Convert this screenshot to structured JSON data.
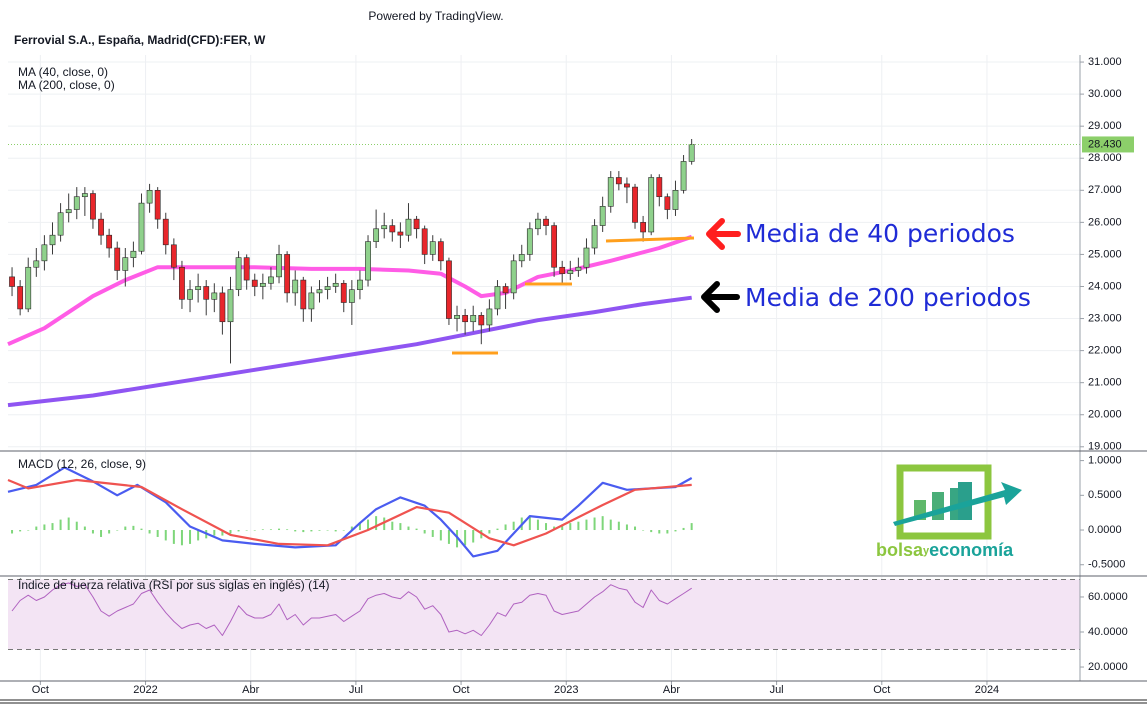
{
  "header": {
    "powered_by": "Powered by TradingView.",
    "title": "Ferrovial S.A., España, Madrid(CFD):FER, W"
  },
  "annotations": {
    "ma40": "Media de 40 periodos",
    "ma200": "Media de 200 periodos"
  },
  "logo": {
    "left": "bolsa",
    "middle": "y",
    "right": "economía"
  },
  "chart_data": [
    {
      "type": "candlestick",
      "xlim": [
        -0.5,
        132
      ],
      "ylim": [
        18.9,
        31.22
      ],
      "grid": true,
      "up_color": "#8fd18c",
      "down_color": "#e8262b",
      "yticks": [
        {
          "value": 19,
          "label": "19.000"
        },
        {
          "value": 20,
          "label": "20.000"
        },
        {
          "value": 21,
          "label": "21.000"
        },
        {
          "value": 22,
          "label": "22.000"
        },
        {
          "value": 23,
          "label": "23.000"
        },
        {
          "value": 24,
          "label": "24.000"
        },
        {
          "value": 25,
          "label": "25.000"
        },
        {
          "value": 26,
          "label": "26.000"
        },
        {
          "value": 27,
          "label": "27.000"
        },
        {
          "value": 28,
          "label": "28.000"
        },
        {
          "value": 29,
          "label": "29.000"
        },
        {
          "value": 30,
          "label": "30.000"
        },
        {
          "value": 31,
          "label": "31.000"
        }
      ],
      "last_price": {
        "value": 28.43,
        "label": "28.430",
        "color": "#8ccf6a"
      },
      "ohlc": {
        "open": [
          24.3,
          24.0,
          23.3,
          24.6,
          24.8,
          25.3,
          25.6,
          26.3,
          26.4,
          26.8,
          26.9,
          26.1,
          25.6,
          25.2,
          24.5,
          24.9,
          25.1,
          26.6,
          27.0,
          26.1,
          25.3,
          24.6,
          23.6,
          23.9,
          24.0,
          23.6,
          23.8,
          22.9,
          23.9,
          24.9,
          24.2,
          24.0,
          24.1,
          24.3,
          25.0,
          23.8,
          24.2,
          23.3,
          23.8,
          23.9,
          24.0,
          24.1,
          23.5,
          23.9,
          24.2,
          25.4,
          25.8,
          25.9,
          25.7,
          25.6,
          26.1,
          25.8,
          25.0,
          25.4,
          24.8,
          23.0,
          23.1,
          22.9,
          23.1,
          22.8,
          23.3,
          24.0,
          23.8,
          24.8,
          25.0,
          25.8,
          26.1,
          25.9,
          24.6,
          24.4,
          24.5,
          24.6,
          25.2,
          25.9,
          26.5,
          27.4,
          27.2,
          27.1,
          26.0,
          25.7,
          27.4,
          26.8,
          26.4,
          27.0,
          27.9
        ],
        "high": [
          24.6,
          24.2,
          24.9,
          25.2,
          25.6,
          26.0,
          26.6,
          26.9,
          27.1,
          27.1,
          27.0,
          26.3,
          25.8,
          25.4,
          25.2,
          25.4,
          26.9,
          27.2,
          27.1,
          26.3,
          25.5,
          24.8,
          24.2,
          24.4,
          24.2,
          24.1,
          24.0,
          24.3,
          25.1,
          25.0,
          24.4,
          24.4,
          24.6,
          25.3,
          25.1,
          24.5,
          24.3,
          24.0,
          24.2,
          24.3,
          24.4,
          24.2,
          24.2,
          24.5,
          25.6,
          26.4,
          26.3,
          26.1,
          26.0,
          26.6,
          26.2,
          25.9,
          25.6,
          25.5,
          24.9,
          23.4,
          23.3,
          23.4,
          23.2,
          23.6,
          24.2,
          24.1,
          25.0,
          25.3,
          26.0,
          26.3,
          26.2,
          26.0,
          24.8,
          24.8,
          24.9,
          25.5,
          26.1,
          26.8,
          27.6,
          27.6,
          27.4,
          27.2,
          26.2,
          27.5,
          27.5,
          26.9,
          27.3,
          28.1,
          28.6
        ],
        "low": [
          23.7,
          23.1,
          23.2,
          24.3,
          24.5,
          25.0,
          25.4,
          26.0,
          26.1,
          26.2,
          25.8,
          25.3,
          24.9,
          24.2,
          24.0,
          24.6,
          25.0,
          26.3,
          25.8,
          25.0,
          24.2,
          23.3,
          23.2,
          23.5,
          23.1,
          23.2,
          22.5,
          21.6,
          23.7,
          23.9,
          23.7,
          23.6,
          23.9,
          24.1,
          23.5,
          23.4,
          22.9,
          22.9,
          23.5,
          23.6,
          23.8,
          23.2,
          22.8,
          23.6,
          24.0,
          25.2,
          25.5,
          25.4,
          25.2,
          25.4,
          25.5,
          24.7,
          24.8,
          24.5,
          22.8,
          22.6,
          22.5,
          22.6,
          22.2,
          22.6,
          23.1,
          23.3,
          23.6,
          24.6,
          24.8,
          25.6,
          25.6,
          24.3,
          24.1,
          24.2,
          24.3,
          24.4,
          25.0,
          25.7,
          26.3,
          27.0,
          26.6,
          25.8,
          25.4,
          25.6,
          26.5,
          26.1,
          26.2,
          26.9,
          27.8
        ],
        "close": [
          24.0,
          23.3,
          24.6,
          24.8,
          25.3,
          25.6,
          26.3,
          26.4,
          26.8,
          26.9,
          26.1,
          25.6,
          25.2,
          24.5,
          24.9,
          25.1,
          26.6,
          27.0,
          26.1,
          25.3,
          24.6,
          23.6,
          23.9,
          24.0,
          23.6,
          23.8,
          22.9,
          23.9,
          24.9,
          24.2,
          24.0,
          24.1,
          24.3,
          25.0,
          23.8,
          24.2,
          23.3,
          23.8,
          23.9,
          24.0,
          24.1,
          23.5,
          23.9,
          24.2,
          25.4,
          25.8,
          25.9,
          25.7,
          25.6,
          26.1,
          25.8,
          25.0,
          25.4,
          24.8,
          23.0,
          23.1,
          22.9,
          23.1,
          22.8,
          23.3,
          24.0,
          23.8,
          24.8,
          25.0,
          25.8,
          26.1,
          25.9,
          24.6,
          24.4,
          24.5,
          24.6,
          25.2,
          25.9,
          26.5,
          27.4,
          27.2,
          27.1,
          26.0,
          25.7,
          27.4,
          26.8,
          26.4,
          27.0,
          27.9,
          28.43
        ]
      },
      "series": [
        {
          "name": "MA (40, close, 0)",
          "color": "#ff5ce6",
          "x": [
            -0.5,
            4,
            10,
            14,
            18,
            23,
            30,
            37,
            43,
            49,
            53,
            56,
            58,
            61,
            65,
            69,
            74,
            80,
            84
          ],
          "values": [
            22.2,
            22.7,
            23.7,
            24.2,
            24.6,
            24.6,
            24.6,
            24.55,
            24.55,
            24.5,
            24.4,
            24.0,
            23.7,
            23.8,
            24.3,
            24.5,
            24.8,
            25.2,
            25.55
          ]
        },
        {
          "name": "MA (200, close, 0)",
          "color": "#8f55f2",
          "x": [
            -0.5,
            10,
            20,
            30,
            40,
            50,
            58,
            65,
            72,
            78,
            84
          ],
          "values": [
            20.3,
            20.6,
            21.0,
            21.4,
            21.8,
            22.2,
            22.6,
            22.95,
            23.2,
            23.45,
            23.65
          ]
        }
      ]
    },
    {
      "type": "macd",
      "title": "MACD (12, 26, close, 9)",
      "xlim": [
        -0.5,
        132
      ],
      "ylim": [
        -0.648,
        1.124
      ],
      "yticks": [
        {
          "value": -0.5,
          "label": "-0.5000"
        },
        {
          "value": 0,
          "label": "0.0000"
        },
        {
          "value": 0.5,
          "label": "0.5000"
        },
        {
          "value": 1,
          "label": "1.0000"
        }
      ],
      "histogram": {
        "color": "#7ed67a",
        "values": [
          -0.05,
          -0.02,
          0.0,
          0.05,
          0.08,
          0.1,
          0.15,
          0.18,
          0.12,
          0.05,
          -0.05,
          -0.1,
          -0.05,
          0.0,
          0.05,
          0.06,
          0.02,
          -0.05,
          -0.1,
          -0.15,
          -0.2,
          -0.22,
          -0.2,
          -0.15,
          -0.12,
          -0.08,
          -0.08,
          -0.05,
          -0.02,
          0.0,
          0.0,
          0.01,
          0.01,
          0.02,
          0.01,
          -0.02,
          -0.03,
          -0.02,
          -0.01,
          0.0,
          -0.02,
          0.0,
          0.05,
          0.1,
          0.15,
          0.2,
          0.18,
          0.12,
          0.1,
          0.05,
          0.02,
          -0.05,
          -0.1,
          -0.15,
          -0.2,
          -0.25,
          -0.22,
          -0.18,
          -0.12,
          -0.05,
          0.02,
          0.08,
          0.12,
          0.18,
          0.2,
          0.15,
          0.1,
          0.05,
          0.08,
          0.1,
          0.12,
          0.15,
          0.18,
          0.2,
          0.15,
          0.12,
          0.08,
          0.05,
          0.0,
          -0.03,
          -0.05,
          -0.05,
          -0.02,
          0.03,
          0.1
        ]
      },
      "series": [
        {
          "color": "#4a5cf0",
          "x": [
            -0.5,
            3,
            6.5,
            10,
            13,
            15.5,
            19,
            22,
            26,
            30,
            35,
            40,
            43,
            45,
            48,
            51,
            53,
            55,
            57,
            60,
            64,
            68,
            70,
            73,
            76,
            79,
            82,
            84
          ],
          "values": [
            0.55,
            0.65,
            0.9,
            0.7,
            0.5,
            0.65,
            0.4,
            0.05,
            -0.15,
            -0.2,
            -0.25,
            -0.22,
            0.1,
            0.3,
            0.47,
            0.35,
            0.15,
            -0.1,
            -0.38,
            -0.3,
            0.2,
            0.15,
            0.35,
            0.68,
            0.58,
            0.6,
            0.62,
            0.75
          ]
        },
        {
          "color": "#ef5350",
          "x": [
            -0.5,
            2,
            8,
            16,
            21,
            27,
            33,
            39,
            44,
            50,
            54,
            59,
            62,
            66,
            73,
            77,
            84
          ],
          "values": [
            0.72,
            0.6,
            0.72,
            0.62,
            0.3,
            -0.07,
            -0.2,
            -0.22,
            0,
            0.33,
            0.25,
            -0.12,
            -0.22,
            -0.05,
            0.36,
            0.58,
            0.65
          ]
        }
      ]
    },
    {
      "type": "rsi",
      "title": "Índice de fuerza relativa (RSI por sus siglas en inglés) (14)",
      "xlim": [
        -0.5,
        132
      ],
      "ylim": [
        12.6,
        71.4
      ],
      "band": [
        30,
        70
      ],
      "band_color": "#f3e4f4",
      "yticks": [
        {
          "value": 20,
          "label": "20.0000"
        },
        {
          "value": 40,
          "label": "40.0000"
        },
        {
          "value": 60,
          "label": "60.0000"
        }
      ],
      "xticks": [
        {
          "value": 3.5,
          "label": "Oct"
        },
        {
          "value": 16.5,
          "label": "2022"
        },
        {
          "value": 29.5,
          "label": "Abr"
        },
        {
          "value": 42.5,
          "label": "Jul"
        },
        {
          "value": 55.5,
          "label": "Oct"
        },
        {
          "value": 68.5,
          "label": "2023"
        },
        {
          "value": 81.5,
          "label": "Abr"
        },
        {
          "value": 94.5,
          "label": "Jul"
        },
        {
          "value": 107.5,
          "label": "Oct"
        },
        {
          "value": 120.5,
          "label": "2024"
        }
      ],
      "series": [
        {
          "color": "#b062c0",
          "values": [
            52,
            58,
            61,
            58,
            60,
            64,
            67,
            68,
            66,
            67,
            60,
            52,
            49,
            52,
            54,
            56,
            62,
            64,
            57,
            51,
            46,
            42,
            44,
            45,
            42,
            44,
            38,
            46,
            55,
            50,
            48,
            48,
            50,
            56,
            47,
            50,
            44,
            48,
            48,
            49,
            50,
            46,
            49,
            52,
            59,
            61,
            62,
            60,
            59,
            63,
            60,
            53,
            55,
            50,
            40,
            41,
            39,
            41,
            38,
            44,
            51,
            49,
            56,
            57,
            61,
            62,
            61,
            52,
            50,
            51,
            52,
            56,
            60,
            63,
            67,
            65,
            64,
            57,
            54,
            64,
            58,
            56,
            59,
            62,
            65
          ]
        }
      ]
    }
  ]
}
